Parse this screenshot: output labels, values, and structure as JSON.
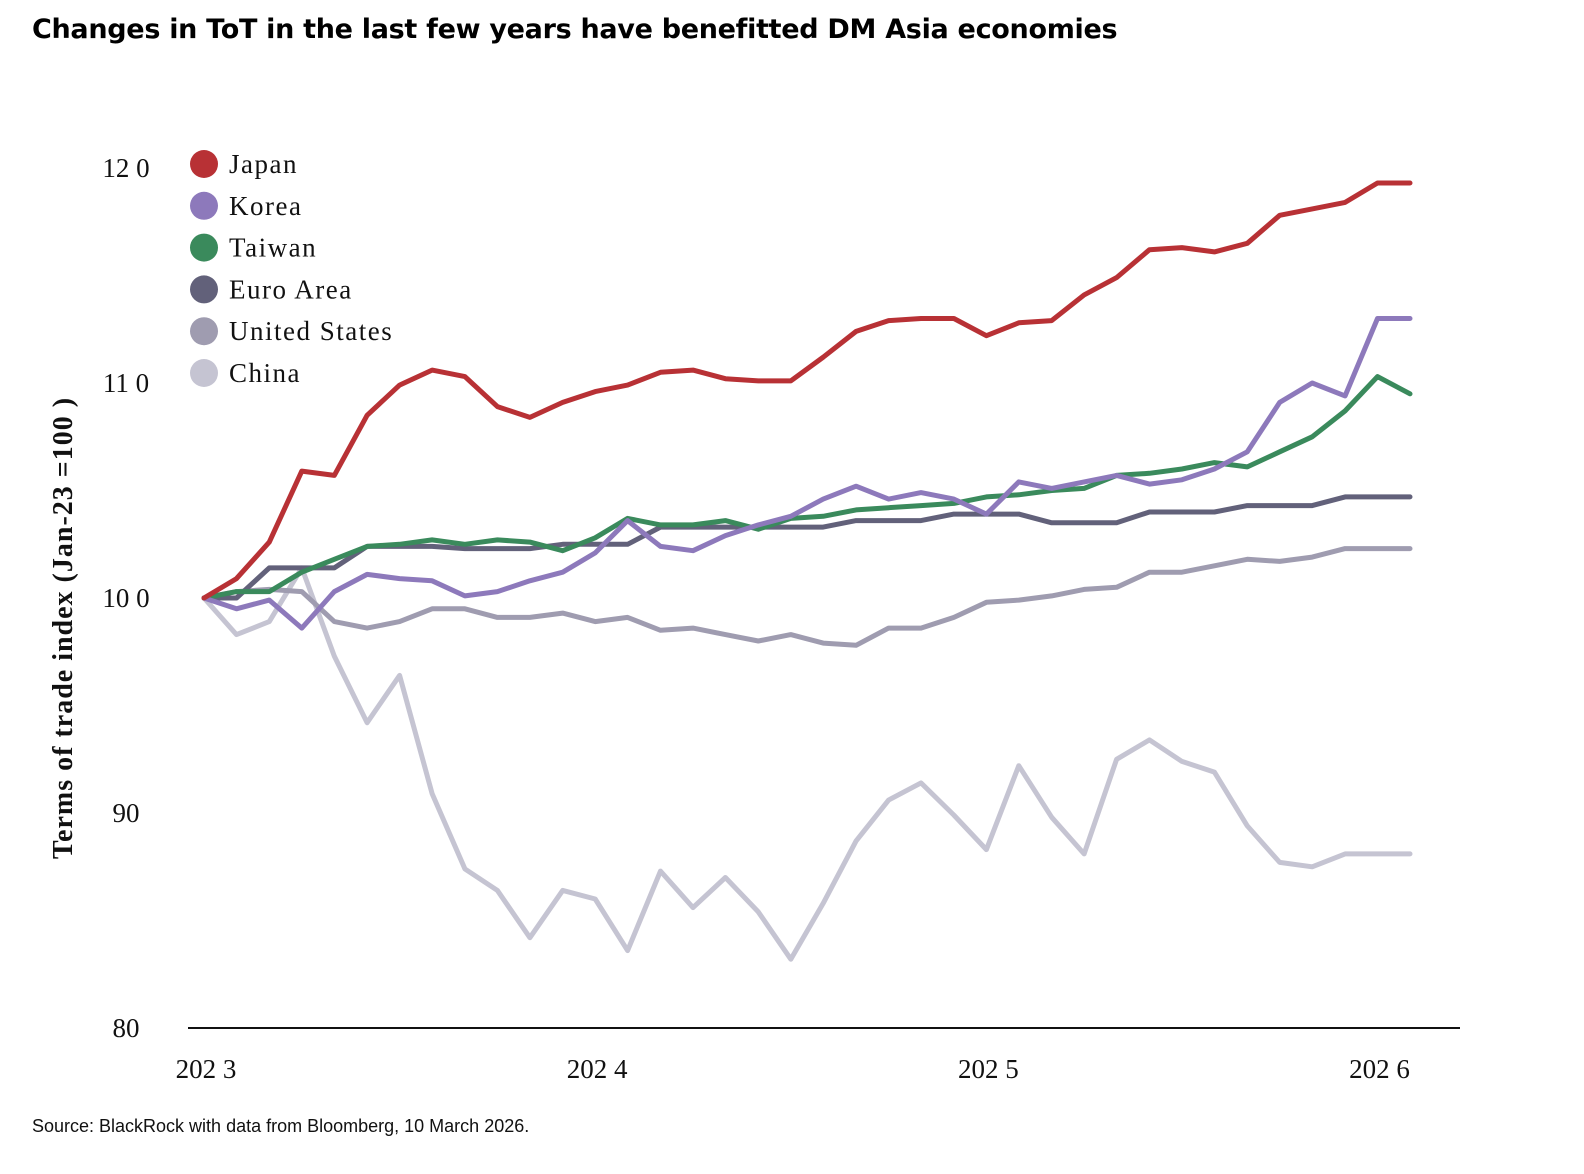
{
  "title": "Changes in ToT in the last few years have benefitted DM Asia economies",
  "source": "Source: BlackRock with data from Bloomberg, 10 March 2026.",
  "chart_data": {
    "type": "line",
    "ylabel": "Terms of trade index (Jan-23 =100 )",
    "xlabel": "",
    "ylim": [
      80,
      120
    ],
    "xlim": [
      2023.0,
      2026.25
    ],
    "yticks": [
      {
        "value": 80,
        "label": "80"
      },
      {
        "value": 90,
        "label": "90"
      },
      {
        "value": 100,
        "label": "10 0"
      },
      {
        "value": 110,
        "label": "11 0"
      },
      {
        "value": 120,
        "label": "12 0"
      }
    ],
    "xticks": [
      {
        "value": 2023.0,
        "label": "202 3"
      },
      {
        "value": 2024.0,
        "label": "202 4"
      },
      {
        "value": 2025.0,
        "label": "202 5"
      },
      {
        "value": 2026.0,
        "label": "202 6"
      }
    ],
    "grid": false,
    "legend_position": "top-left",
    "x": [
      2023.0,
      2023.083,
      2023.167,
      2023.25,
      2023.333,
      2023.417,
      2023.5,
      2023.583,
      2023.667,
      2023.75,
      2023.833,
      2023.917,
      2024.0,
      2024.083,
      2024.167,
      2024.25,
      2024.333,
      2024.417,
      2024.5,
      2024.583,
      2024.667,
      2024.75,
      2024.833,
      2024.917,
      2025.0,
      2025.083,
      2025.167,
      2025.25,
      2025.333,
      2025.417,
      2025.5,
      2025.583,
      2025.667,
      2025.75,
      2025.833,
      2025.917,
      2026.0,
      2026.083
    ],
    "series": [
      {
        "name": "Japan",
        "color": "#b83135",
        "values": [
          100,
          100.9,
          102.6,
          105.9,
          105.7,
          108.5,
          109.9,
          110.6,
          110.3,
          108.9,
          108.4,
          109.1,
          109.6,
          109.9,
          110.5,
          110.6,
          110.2,
          110.1,
          110.1,
          111.2,
          112.4,
          112.9,
          113.0,
          113.0,
          112.2,
          112.8,
          112.9,
          114.1,
          114.9,
          116.2,
          116.3,
          116.1,
          116.5,
          117.8,
          118.1,
          118.4,
          119.3,
          119.3
        ]
      },
      {
        "name": "Korea",
        "color": "#8d79bb",
        "values": [
          100,
          99.5,
          99.9,
          98.6,
          100.3,
          101.1,
          100.9,
          100.8,
          100.1,
          100.3,
          100.8,
          101.2,
          102.1,
          103.6,
          102.4,
          102.2,
          102.9,
          103.4,
          103.8,
          104.6,
          105.2,
          104.6,
          104.9,
          104.6,
          103.9,
          105.4,
          105.1,
          105.4,
          105.7,
          105.3,
          105.5,
          106.0,
          106.8,
          109.1,
          110.0,
          109.4,
          113.0,
          113.0
        ]
      },
      {
        "name": "Taiwan",
        "color": "#3a8a5c",
        "values": [
          100,
          100.3,
          100.3,
          101.2,
          101.8,
          102.4,
          102.5,
          102.7,
          102.5,
          102.7,
          102.6,
          102.2,
          102.8,
          103.7,
          103.4,
          103.4,
          103.6,
          103.2,
          103.7,
          103.8,
          104.1,
          104.2,
          104.3,
          104.4,
          104.7,
          104.8,
          105.0,
          105.1,
          105.7,
          105.8,
          106.0,
          106.3,
          106.1,
          106.8,
          107.5,
          108.7,
          110.3,
          109.5
        ]
      },
      {
        "name": "Euro Area",
        "color": "#62617a",
        "values": [
          100,
          100.0,
          101.4,
          101.4,
          101.4,
          102.4,
          102.4,
          102.4,
          102.3,
          102.3,
          102.3,
          102.5,
          102.5,
          102.5,
          103.3,
          103.3,
          103.3,
          103.3,
          103.3,
          103.3,
          103.6,
          103.6,
          103.6,
          103.9,
          103.9,
          103.9,
          103.5,
          103.5,
          103.5,
          104.0,
          104.0,
          104.0,
          104.3,
          104.3,
          104.3,
          104.7,
          104.7,
          104.7
        ]
      },
      {
        "name": "United States",
        "color": "#9f9cb0",
        "values": [
          100,
          100.3,
          100.4,
          100.3,
          98.9,
          98.6,
          98.9,
          99.5,
          99.5,
          99.1,
          99.1,
          99.3,
          98.9,
          99.1,
          98.5,
          98.6,
          98.3,
          98.0,
          98.3,
          97.9,
          97.8,
          98.6,
          98.6,
          99.1,
          99.8,
          99.9,
          100.1,
          100.4,
          100.5,
          101.2,
          101.2,
          101.5,
          101.8,
          101.7,
          101.9,
          102.3,
          102.3,
          102.3
        ]
      },
      {
        "name": "China",
        "color": "#c5c4d2",
        "values": [
          100,
          98.3,
          98.9,
          101.4,
          97.3,
          94.2,
          96.4,
          90.9,
          87.4,
          86.4,
          84.2,
          86.4,
          86.0,
          83.6,
          87.3,
          85.6,
          87.0,
          85.4,
          83.2,
          85.8,
          88.7,
          90.6,
          91.4,
          89.9,
          88.3,
          92.2,
          89.8,
          88.1,
          92.5,
          93.4,
          92.4,
          91.9,
          89.4,
          87.7,
          87.5,
          88.1,
          88.1,
          88.1
        ]
      }
    ]
  }
}
